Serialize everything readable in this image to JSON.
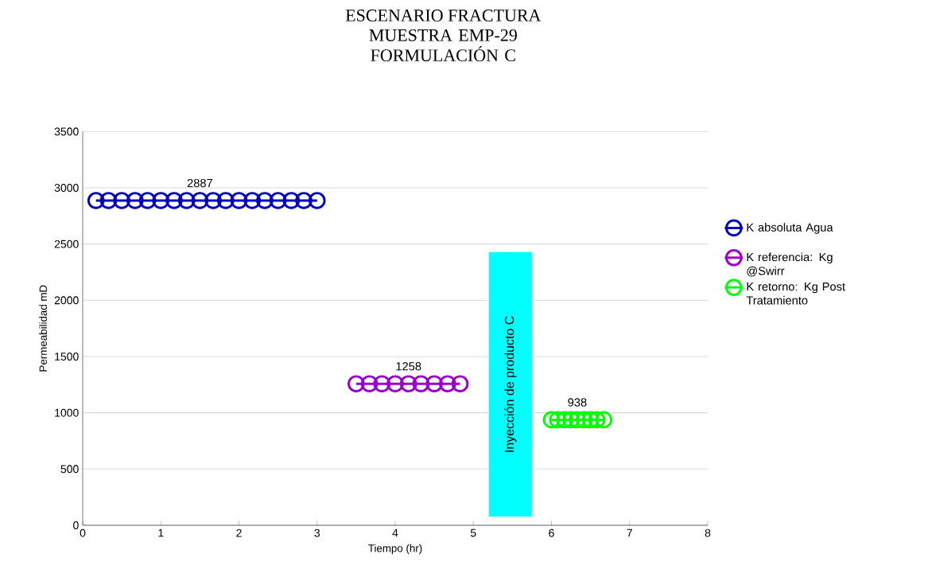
{
  "chart_data": {
    "type": "line",
    "title": "ESCENARIO FRACTURA",
    "subtitle": "MUESTRA EMP-29 FORMULACIÓN C",
    "xlabel": "Tiempo (hr)",
    "ylabel": "Permeabilidad mD",
    "xlim": [
      0,
      8
    ],
    "xticks": [
      0,
      1,
      2,
      3,
      4,
      5,
      6,
      7,
      8
    ],
    "ylim": [
      0,
      3500
    ],
    "yticks": [
      0,
      500,
      1000,
      1500,
      2000,
      2500,
      3000,
      3500
    ],
    "grid": "y",
    "legend": "right",
    "marker": "circle",
    "line_style": "solid",
    "series": [
      {
        "name": "K absoluta Agua",
        "color": "#0000c0",
        "x": [
          0.17,
          0.33,
          0.5,
          0.67,
          0.83,
          1.0,
          1.17,
          1.33,
          1.5,
          1.67,
          1.83,
          2.0,
          2.17,
          2.33,
          2.5,
          2.67,
          2.83,
          3.0
        ],
        "values": [
          2887,
          2887,
          2887,
          2887,
          2887,
          2887,
          2887,
          2887,
          2887,
          2887,
          2887,
          2887,
          2887,
          2887,
          2887,
          2887,
          2887,
          2887
        ],
        "value_labels": [
          null,
          null,
          null,
          null,
          null,
          null,
          null,
          null,
          "2887",
          null,
          null,
          null,
          null,
          null,
          null,
          null,
          null,
          null
        ]
      },
      {
        "name": "K referencia: Kg @Swirr",
        "color": "#9900cc",
        "x": [
          3.5,
          3.67,
          3.83,
          4.0,
          4.17,
          4.33,
          4.5,
          4.67,
          4.83
        ],
        "values": [
          1258,
          1258,
          1258,
          1258,
          1258,
          1258,
          1258,
          1258,
          1258
        ],
        "value_labels": [
          null,
          null,
          null,
          null,
          "1258",
          null,
          null,
          null,
          null
        ]
      },
      {
        "name": "K retorno: Kg Post Tratamiento",
        "color": "#00ff00",
        "x": [
          6.0,
          6.08,
          6.17,
          6.25,
          6.33,
          6.42,
          6.5,
          6.58,
          6.67
        ],
        "values": [
          938,
          938,
          938,
          938,
          938,
          938,
          938,
          938,
          938
        ],
        "value_labels": [
          null,
          null,
          null,
          null,
          "938",
          null,
          null,
          null,
          null
        ]
      }
    ],
    "bands": [
      {
        "axis": "x",
        "from": 5.2,
        "to": 5.75,
        "label": "Inyección de producto C",
        "color": "#00ffff"
      }
    ]
  }
}
